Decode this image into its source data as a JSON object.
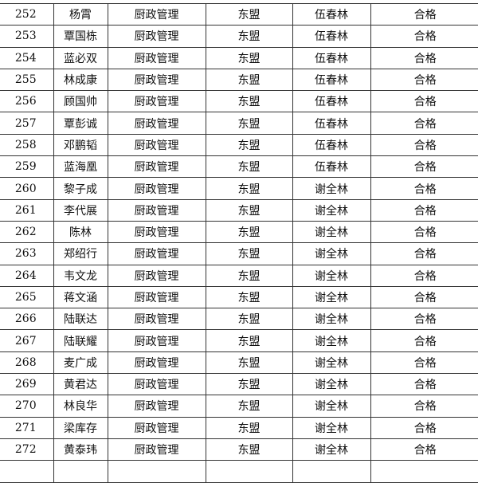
{
  "rows": [
    {
      "no": "252",
      "name": "杨霄",
      "course": "厨政管理",
      "region": "东盟",
      "teacher": "伍春林",
      "result": "合格"
    },
    {
      "no": "253",
      "name": "覃国栋",
      "course": "厨政管理",
      "region": "东盟",
      "teacher": "伍春林",
      "result": "合格"
    },
    {
      "no": "254",
      "name": "蓝必双",
      "course": "厨政管理",
      "region": "东盟",
      "teacher": "伍春林",
      "result": "合格"
    },
    {
      "no": "255",
      "name": "林成康",
      "course": "厨政管理",
      "region": "东盟",
      "teacher": "伍春林",
      "result": "合格"
    },
    {
      "no": "256",
      "name": "顾国帅",
      "course": "厨政管理",
      "region": "东盟",
      "teacher": "伍春林",
      "result": "合格"
    },
    {
      "no": "257",
      "name": "覃彭诚",
      "course": "厨政管理",
      "region": "东盟",
      "teacher": "伍春林",
      "result": "合格"
    },
    {
      "no": "258",
      "name": "邓鹏韬",
      "course": "厨政管理",
      "region": "东盟",
      "teacher": "伍春林",
      "result": "合格"
    },
    {
      "no": "259",
      "name": "蓝海凰",
      "course": "厨政管理",
      "region": "东盟",
      "teacher": "伍春林",
      "result": "合格"
    },
    {
      "no": "260",
      "name": "黎子成",
      "course": "厨政管理",
      "region": "东盟",
      "teacher": "谢全林",
      "result": "合格"
    },
    {
      "no": "261",
      "name": "李代展",
      "course": "厨政管理",
      "region": "东盟",
      "teacher": "谢全林",
      "result": "合格"
    },
    {
      "no": "262",
      "name": "陈林",
      "course": "厨政管理",
      "region": "东盟",
      "teacher": "谢全林",
      "result": "合格"
    },
    {
      "no": "263",
      "name": "郑绍行",
      "course": "厨政管理",
      "region": "东盟",
      "teacher": "谢全林",
      "result": "合格"
    },
    {
      "no": "264",
      "name": "韦文龙",
      "course": "厨政管理",
      "region": "东盟",
      "teacher": "谢全林",
      "result": "合格"
    },
    {
      "no": "265",
      "name": "蒋文涵",
      "course": "厨政管理",
      "region": "东盟",
      "teacher": "谢全林",
      "result": "合格"
    },
    {
      "no": "266",
      "name": "陆联达",
      "course": "厨政管理",
      "region": "东盟",
      "teacher": "谢全林",
      "result": "合格"
    },
    {
      "no": "267",
      "name": "陆联耀",
      "course": "厨政管理",
      "region": "东盟",
      "teacher": "谢全林",
      "result": "合格"
    },
    {
      "no": "268",
      "name": "麦广成",
      "course": "厨政管理",
      "region": "东盟",
      "teacher": "谢全林",
      "result": "合格"
    },
    {
      "no": "269",
      "name": "黄君达",
      "course": "厨政管理",
      "region": "东盟",
      "teacher": "谢全林",
      "result": "合格"
    },
    {
      "no": "270",
      "name": "林良华",
      "course": "厨政管理",
      "region": "东盟",
      "teacher": "谢全林",
      "result": "合格"
    },
    {
      "no": "271",
      "name": "梁库存",
      "course": "厨政管理",
      "region": "东盟",
      "teacher": "谢全林",
      "result": "合格"
    },
    {
      "no": "272",
      "name": "黄泰玮",
      "course": "厨政管理",
      "region": "东盟",
      "teacher": "谢全林",
      "result": "合格"
    }
  ]
}
